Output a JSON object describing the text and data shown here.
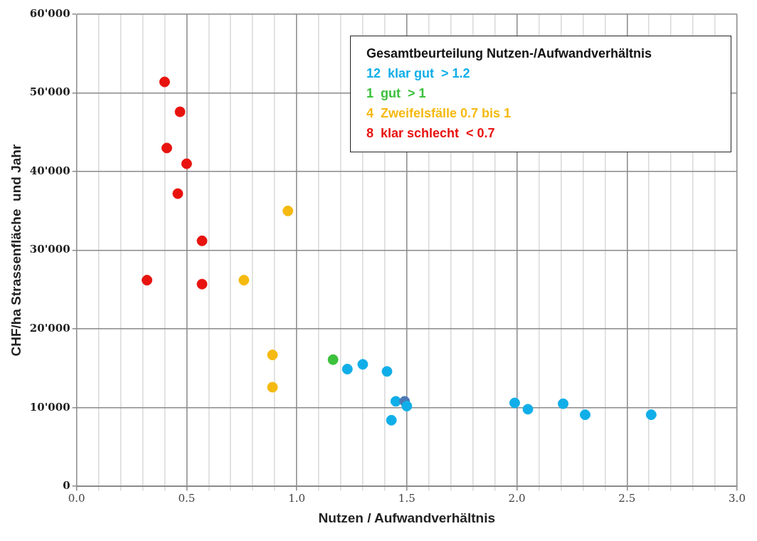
{
  "chart_data": {
    "type": "scatter",
    "xlabel": "Nutzen / Aufwandverhältnis",
    "ylabel": "CHF/ha Strassenfläche  und Jahr",
    "legend_title": "Gesamtbeurteilung Nutzen-/Aufwandverhältnis",
    "legend": "top right",
    "grid": true,
    "marker": "circle",
    "xlim": [
      0,
      3
    ],
    "xticks": [
      {
        "value": 0,
        "label": "0.0"
      },
      {
        "value": 0.1,
        "label": null
      },
      {
        "value": 0.2,
        "label": null
      },
      {
        "value": 0.3,
        "label": null
      },
      {
        "value": 0.4,
        "label": null
      },
      {
        "value": 0.5,
        "label": "0.5"
      },
      {
        "value": 0.6,
        "label": null
      },
      {
        "value": 0.7,
        "label": null
      },
      {
        "value": 0.8,
        "label": null
      },
      {
        "value": 0.9,
        "label": null
      },
      {
        "value": 1,
        "label": "1.0"
      },
      {
        "value": 1.1,
        "label": null
      },
      {
        "value": 1.2,
        "label": null
      },
      {
        "value": 1.3,
        "label": null
      },
      {
        "value": 1.4,
        "label": null
      },
      {
        "value": 1.5,
        "label": "1.5"
      },
      {
        "value": 1.6,
        "label": null
      },
      {
        "value": 1.7,
        "label": null
      },
      {
        "value": 1.8,
        "label": null
      },
      {
        "value": 1.9,
        "label": null
      },
      {
        "value": 2,
        "label": "2.0"
      },
      {
        "value": 2.1,
        "label": null
      },
      {
        "value": 2.2,
        "label": null
      },
      {
        "value": 2.3,
        "label": null
      },
      {
        "value": 2.4,
        "label": null
      },
      {
        "value": 2.5,
        "label": "2.5"
      },
      {
        "value": 2.6,
        "label": null
      },
      {
        "value": 2.7,
        "label": null
      },
      {
        "value": 2.8,
        "label": null
      },
      {
        "value": 2.9,
        "label": null
      },
      {
        "value": 3,
        "label": "3.0"
      }
    ],
    "ylim": [
      0,
      60000
    ],
    "yticks": [
      0,
      {
        "value": 10000,
        "label": "10'000"
      },
      {
        "value": 20000,
        "label": "20'000"
      },
      {
        "value": 30000,
        "label": "30'000"
      },
      {
        "value": 40000,
        "label": "40'000"
      },
      {
        "value": 50000,
        "label": "50'000"
      },
      {
        "value": 60000,
        "label": "60'000"
      }
    ],
    "series": [
      {
        "name": "12  klar gut  > 1.2",
        "color": "#10aee8",
        "x": [
          1.23,
          1.3,
          1.41,
          1.45,
          1.49,
          1.5,
          1.43,
          1.99,
          2.05,
          2.21,
          2.31,
          2.61
        ],
        "values": [
          14900,
          15500,
          14600,
          10800,
          10800,
          10200,
          8400,
          10600,
          9800,
          10500,
          9100,
          9100
        ],
        "colors": [
          "#10aee8",
          "#10aee8",
          "#10aee8",
          "#10aee8",
          "#4b79b5",
          "#10aee8",
          "#10aee8",
          "#10aee8",
          "#10aee8",
          "#10aee8",
          "#10aee8",
          "#10aee8"
        ]
      },
      {
        "name": "1  gut  > 1",
        "color": "#3cc13c",
        "x": [
          1.165
        ],
        "values": [
          16100
        ]
      },
      {
        "name": "4  Zweifelsfälle 0.7 bis 1",
        "color": "#f5b90f",
        "x": [
          0.96,
          0.76,
          0.89,
          0.89
        ],
        "values": [
          35000,
          26200,
          16700,
          12600
        ]
      },
      {
        "name": "8  klar schlecht  < 0.7",
        "color": "#e8130f",
        "x": [
          0.4,
          0.47,
          0.41,
          0.5,
          0.46,
          0.57,
          0.32,
          0.57
        ],
        "values": [
          51400,
          47600,
          43000,
          41000,
          37200,
          31200,
          26200,
          25700
        ]
      }
    ]
  }
}
